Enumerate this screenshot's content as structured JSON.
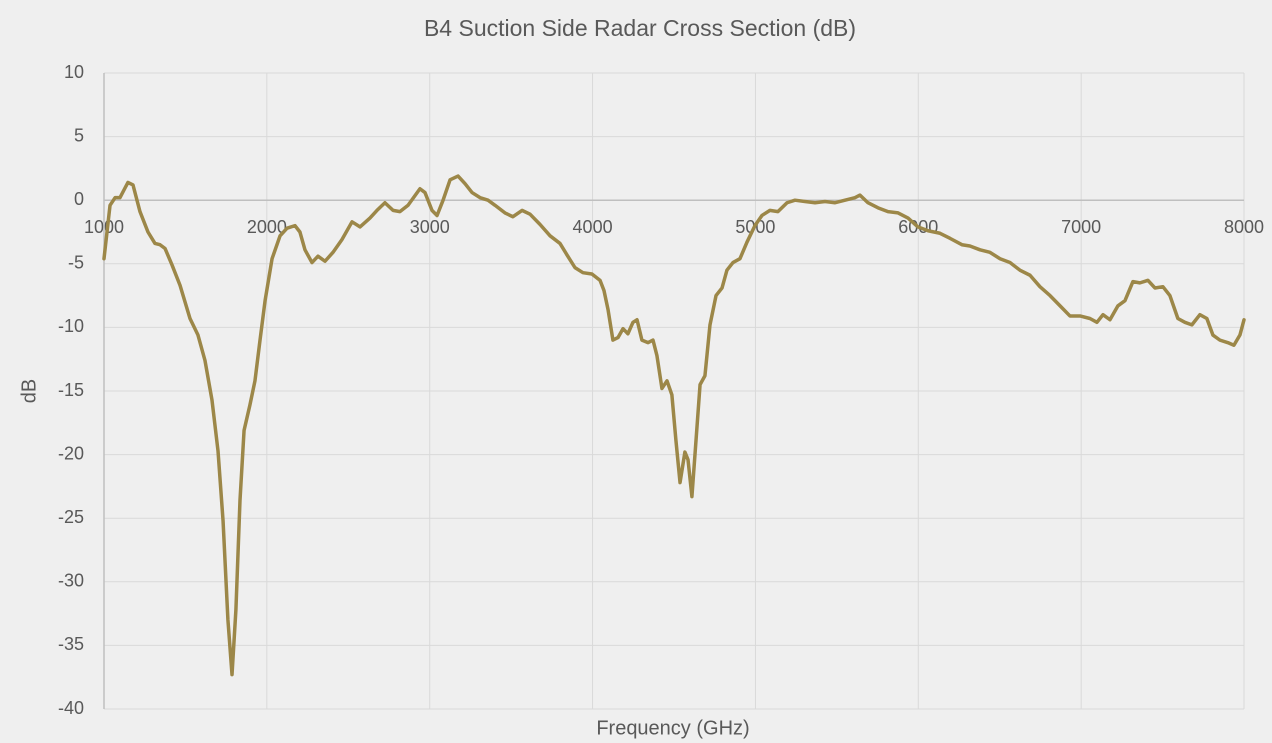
{
  "chart_data": {
    "type": "line",
    "title": "B4 Suction Side Radar Cross Section (dB)",
    "x_label": "Frequency (GHz)",
    "y_label": "dB",
    "color": "#9c8748",
    "grid": true,
    "xlim": [
      1000,
      8000
    ],
    "xticks": [
      1000,
      2000,
      3000,
      4000,
      5000,
      6000,
      7000,
      8000
    ],
    "ylim": [
      -40,
      10
    ],
    "yticks": [
      -40,
      -35,
      -30,
      -25,
      -20,
      -15,
      -10,
      -5,
      0,
      5,
      10
    ],
    "x": [
      1000,
      1037,
      1068,
      1098,
      1147,
      1178,
      1221,
      1270,
      1313,
      1344,
      1375,
      1418,
      1467,
      1528,
      1577,
      1620,
      1663,
      1700,
      1731,
      1761,
      1786,
      1810,
      1835,
      1860,
      1896,
      1927,
      1958,
      1989,
      2032,
      2081,
      2124,
      2173,
      2203,
      2234,
      2277,
      2314,
      2357,
      2406,
      2461,
      2523,
      2572,
      2633,
      2676,
      2725,
      2775,
      2817,
      2867,
      2940,
      2971,
      3014,
      3045,
      3082,
      3125,
      3174,
      3217,
      3260,
      3309,
      3358,
      3401,
      3462,
      3511,
      3567,
      3616,
      3677,
      3739,
      3800,
      3843,
      3892,
      3941,
      3996,
      4046,
      4070,
      4095,
      4125,
      4156,
      4187,
      4217,
      4248,
      4273,
      4303,
      4340,
      4371,
      4395,
      4426,
      4457,
      4487,
      4512,
      4537,
      4567,
      4586,
      4610,
      4635,
      4660,
      4690,
      4721,
      4758,
      4795,
      4825,
      4862,
      4905,
      4948,
      4997,
      5040,
      5089,
      5138,
      5194,
      5243,
      5304,
      5366,
      5427,
      5489,
      5550,
      5611,
      5642,
      5691,
      5753,
      5814,
      5876,
      5937,
      5998,
      6060,
      6133,
      6195,
      6268,
      6317,
      6379,
      6440,
      6502,
      6563,
      6624,
      6686,
      6747,
      6809,
      6870,
      6931,
      6993,
      7054,
      7097,
      7134,
      7177,
      7226,
      7269,
      7318,
      7361,
      7410,
      7453,
      7502,
      7545,
      7594,
      7637,
      7680,
      7729,
      7772,
      7809,
      7852,
      7901,
      7938,
      7975,
      8000
    ],
    "values": [
      -4.6,
      -0.4,
      0.2,
      0.2,
      1.4,
      1.2,
      -0.9,
      -2.5,
      -3.4,
      -3.5,
      -3.8,
      -5.1,
      -6.7,
      -9.3,
      -10.6,
      -12.6,
      -15.7,
      -19.7,
      -25.2,
      -33,
      -37.3,
      -32.2,
      -23.6,
      -18.1,
      -16.1,
      -14.2,
      -11,
      -7.9,
      -4.6,
      -2.8,
      -2.2,
      -2.0,
      -2.5,
      -3.9,
      -4.9,
      -4.4,
      -4.8,
      -4.1,
      -3.1,
      -1.7,
      -2.1,
      -1.4,
      -0.8,
      -0.2,
      -0.8,
      -0.9,
      -0.4,
      0.9,
      0.6,
      -0.8,
      -1.2,
      0,
      1.6,
      1.9,
      1.3,
      0.6,
      0.2,
      0,
      -0.4,
      -1.0,
      -1.3,
      -0.8,
      -1.1,
      -1.9,
      -2.8,
      -3.4,
      -4.3,
      -5.3,
      -5.7,
      -5.8,
      -6.3,
      -7.1,
      -8.6,
      -11.0,
      -10.8,
      -10.1,
      -10.5,
      -9.6,
      -9.4,
      -11.0,
      -11.2,
      -11.0,
      -12.2,
      -14.8,
      -14.2,
      -15.3,
      -18.9,
      -22.2,
      -19.8,
      -20.4,
      -23.3,
      -18.9,
      -14.5,
      -13.8,
      -9.8,
      -7.5,
      -6.9,
      -5.5,
      -4.9,
      -4.6,
      -3.3,
      -2.0,
      -1.2,
      -0.8,
      -0.9,
      -0.2,
      0,
      -0.1,
      -0.2,
      -0.1,
      -0.2,
      0,
      0.2,
      0.4,
      -0.2,
      -0.6,
      -0.9,
      -1.0,
      -1.4,
      -2.1,
      -2.4,
      -2.6,
      -3.0,
      -3.5,
      -3.6,
      -3.9,
      -4.1,
      -4.6,
      -4.9,
      -5.5,
      -5.9,
      -6.8,
      -7.5,
      -8.3,
      -9.1,
      -9.1,
      -9.3,
      -9.6,
      -9.0,
      -9.4,
      -8.3,
      -7.9,
      -6.4,
      -6.5,
      -6.3,
      -6.9,
      -6.8,
      -7.5,
      -9.3,
      -9.6,
      -9.8,
      -9.0,
      -9.3,
      -10.6,
      -11.0,
      -11.2,
      -11.4,
      -10.6,
      -9.4
    ]
  }
}
